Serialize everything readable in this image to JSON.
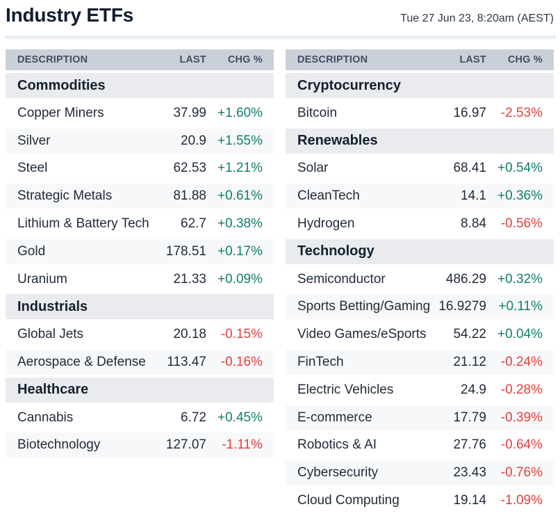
{
  "page": {
    "title": "Industry ETFs",
    "timestamp": "Tue 27 Jun 23, 8:20am (AEST)"
  },
  "columns": {
    "description": "DESCRIPTION",
    "last": "LAST",
    "chg": "CHG %"
  },
  "colors": {
    "title_text": "#101d31",
    "timestamp_text": "#2c3748",
    "divider": "#e7edf4",
    "header_bg": "#cad0d8",
    "header_text": "#424e64",
    "section_bg": "#e9ebee",
    "section_text": "#14202f",
    "row_text": "#212b3a",
    "zebra_bg": "#f7f8f9",
    "positive": "#0e7f6b",
    "negative": "#e3403c"
  },
  "tables": [
    {
      "sections": [
        {
          "name": "Commodities",
          "rows": [
            {
              "description": "Copper Miners",
              "last": "37.99",
              "chg": "+1.60%"
            },
            {
              "description": "Silver",
              "last": "20.9",
              "chg": "+1.55%"
            },
            {
              "description": "Steel",
              "last": "62.53",
              "chg": "+1.21%"
            },
            {
              "description": "Strategic Metals",
              "last": "81.88",
              "chg": "+0.61%"
            },
            {
              "description": "Lithium & Battery Tech",
              "last": "62.7",
              "chg": "+0.38%"
            },
            {
              "description": "Gold",
              "last": "178.51",
              "chg": "+0.17%"
            },
            {
              "description": "Uranium",
              "last": "21.33",
              "chg": "+0.09%"
            }
          ]
        },
        {
          "name": "Industrials",
          "rows": [
            {
              "description": "Global Jets",
              "last": "20.18",
              "chg": "-0.15%"
            },
            {
              "description": "Aerospace & Defense",
              "last": "113.47",
              "chg": "-0.16%"
            }
          ]
        },
        {
          "name": "Healthcare",
          "rows": [
            {
              "description": "Cannabis",
              "last": "6.72",
              "chg": "+0.45%"
            },
            {
              "description": "Biotechnology",
              "last": "127.07",
              "chg": "-1.11%"
            }
          ]
        }
      ]
    },
    {
      "sections": [
        {
          "name": "Cryptocurrency",
          "rows": [
            {
              "description": "Bitcoin",
              "last": "16.97",
              "chg": "-2.53%"
            }
          ]
        },
        {
          "name": "Renewables",
          "rows": [
            {
              "description": "Solar",
              "last": "68.41",
              "chg": "+0.54%"
            },
            {
              "description": "CleanTech",
              "last": "14.1",
              "chg": "+0.36%"
            },
            {
              "description": "Hydrogen",
              "last": "8.84",
              "chg": "-0.56%"
            }
          ]
        },
        {
          "name": "Technology",
          "rows": [
            {
              "description": "Semiconductor",
              "last": "486.29",
              "chg": "+0.32%"
            },
            {
              "description": "Sports Betting/Gaming",
              "last": "16.9279",
              "chg": "+0.11%"
            },
            {
              "description": "Video Games/eSports",
              "last": "54.22",
              "chg": "+0.04%"
            },
            {
              "description": "FinTech",
              "last": "21.12",
              "chg": "-0.24%"
            },
            {
              "description": "Electric Vehicles",
              "last": "24.9",
              "chg": "-0.28%"
            },
            {
              "description": "E-commerce",
              "last": "17.79",
              "chg": "-0.39%"
            },
            {
              "description": "Robotics & AI",
              "last": "27.76",
              "chg": "-0.64%"
            },
            {
              "description": "Cybersecurity",
              "last": "23.43",
              "chg": "-0.76%"
            },
            {
              "description": "Cloud Computing",
              "last": "19.14",
              "chg": "-1.09%"
            }
          ]
        }
      ]
    }
  ]
}
